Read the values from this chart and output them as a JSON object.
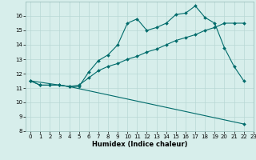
{
  "xlabel": "Humidex (Indice chaleur)",
  "background_color": "#d7eeeb",
  "grid_color": "#b8d8d5",
  "line_color": "#006b6b",
  "xlim": [
    -0.5,
    23
  ],
  "ylim": [
    8,
    17
  ],
  "xticks": [
    0,
    1,
    2,
    3,
    4,
    5,
    6,
    7,
    8,
    9,
    10,
    11,
    12,
    13,
    14,
    15,
    16,
    17,
    18,
    19,
    20,
    21,
    22,
    23
  ],
  "yticks": [
    8,
    9,
    10,
    11,
    12,
    13,
    14,
    15,
    16
  ],
  "series1_x": [
    0,
    1,
    2,
    3,
    4,
    5,
    6,
    7,
    8,
    9,
    10,
    11,
    12,
    13,
    14,
    15,
    16,
    17,
    18,
    19,
    20,
    21,
    22
  ],
  "series1_y": [
    11.5,
    11.2,
    11.2,
    11.2,
    11.1,
    11.1,
    12.1,
    12.9,
    13.3,
    14.0,
    15.5,
    15.8,
    15.0,
    15.2,
    15.5,
    16.1,
    16.2,
    16.7,
    15.9,
    15.5,
    13.8,
    12.5,
    11.5
  ],
  "series2_x": [
    0,
    1,
    2,
    3,
    4,
    5,
    6,
    7,
    8,
    9,
    10,
    11,
    12,
    13,
    14,
    15,
    16,
    17,
    18,
    19,
    20,
    21,
    22
  ],
  "series2_y": [
    11.5,
    11.2,
    11.2,
    11.2,
    11.1,
    11.2,
    11.7,
    12.2,
    12.5,
    12.7,
    13.0,
    13.2,
    13.5,
    13.7,
    14.0,
    14.3,
    14.5,
    14.7,
    15.0,
    15.2,
    15.5,
    15.5,
    15.5
  ],
  "series3_x": [
    0,
    4,
    22
  ],
  "series3_y": [
    11.5,
    11.1,
    8.5
  ],
  "xlabel_fontsize": 6,
  "tick_fontsize": 5,
  "linewidth": 0.8,
  "markersize": 2.0
}
